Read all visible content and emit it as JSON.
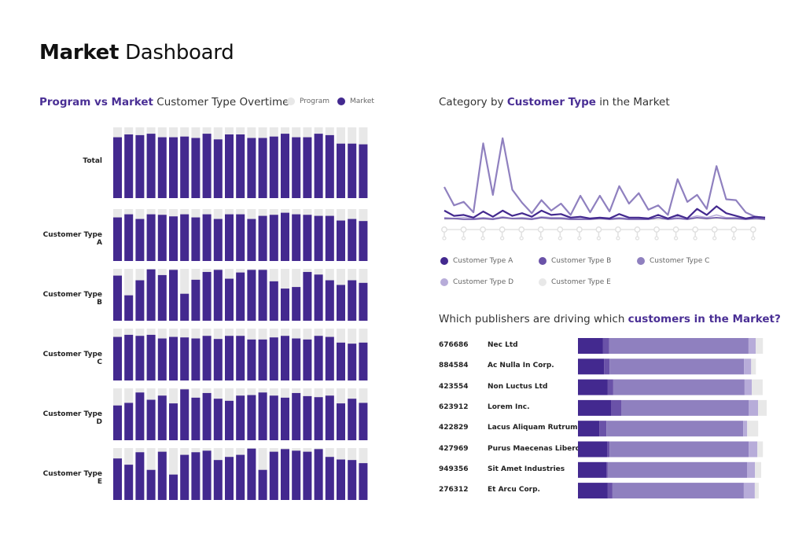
{
  "header": {
    "title_bold": "Market",
    "title_light": "Dashboard"
  },
  "colors": {
    "typeA": "#43298f",
    "typeB": "#6a52a8",
    "typeC": "#8f80bf",
    "typeD": "#b7acd9",
    "typeE": "#e8e8e8",
    "program": "#e8e8e8",
    "market": "#43298f",
    "accent": "#4a2f95"
  },
  "left_panel": {
    "title_highlight": "Program vs Market",
    "title_rest": " Customer Type Overtime",
    "legend": [
      {
        "label": "Program",
        "color": "#e8e8e8"
      },
      {
        "label": "Market",
        "color": "#43298f"
      }
    ]
  },
  "right_panel": {
    "title_pre": "Category by ",
    "title_highlight": "Customer Type",
    "title_post": " in the Market",
    "legend": [
      {
        "label": "Customer Type A",
        "color": "#43298f"
      },
      {
        "label": "Customer Type B",
        "color": "#6a52a8"
      },
      {
        "label": "Customer Type C",
        "color": "#8f80bf"
      },
      {
        "label": "Customer Type D",
        "color": "#b7acd9"
      },
      {
        "label": "Customer Type E",
        "color": "#e8e8e8"
      }
    ]
  },
  "publishers_panel": {
    "title_pre": "Which publishers are driving which ",
    "title_highlight": "customers in the Market?"
  },
  "chart_data": [
    {
      "type": "bar",
      "title": "Program vs Market Customer Type Overtime",
      "description": "Small multiples: Market share (purple) over Program total (grey), 23 periods per row, values as % of Program",
      "ylim": [
        0,
        100
      ],
      "legend": [
        "Program",
        "Market"
      ],
      "rows": [
        {
          "name": "Total",
          "values": [
            86,
            90,
            89,
            91,
            86,
            86,
            87,
            85,
            91,
            83,
            90,
            90,
            85,
            85,
            87,
            91,
            86,
            86,
            91,
            89,
            77,
            77,
            76
          ]
        },
        {
          "name": "Customer Type A",
          "values": [
            84,
            90,
            81,
            90,
            89,
            86,
            90,
            84,
            90,
            81,
            90,
            90,
            81,
            87,
            89,
            93,
            90,
            89,
            87,
            87,
            78,
            81,
            77
          ]
        },
        {
          "name": "Customer Type B",
          "values": [
            87,
            49,
            78,
            99,
            88,
            98,
            52,
            79,
            94,
            98,
            81,
            93,
            98,
            98,
            76,
            62,
            65,
            94,
            89,
            78,
            69,
            78,
            73
          ]
        },
        {
          "name": "Customer Type C",
          "values": [
            84,
            88,
            86,
            88,
            81,
            84,
            83,
            81,
            86,
            80,
            86,
            86,
            79,
            79,
            83,
            86,
            81,
            79,
            86,
            84,
            73,
            71,
            73
          ]
        },
        {
          "name": "Customer Type D",
          "values": [
            67,
            72,
            92,
            78,
            86,
            71,
            98,
            82,
            91,
            80,
            76,
            86,
            87,
            92,
            86,
            82,
            91,
            85,
            83,
            86,
            71,
            80,
            72
          ]
        },
        {
          "name": "Customer Type E",
          "values": [
            80,
            68,
            92,
            58,
            93,
            49,
            87,
            92,
            95,
            77,
            83,
            87,
            99,
            58,
            93,
            98,
            95,
            93,
            98,
            83,
            78,
            77,
            71
          ]
        }
      ]
    },
    {
      "type": "line",
      "title": "Category by Customer Type in the Market",
      "x_ticks": 17,
      "ylim": [
        0,
        100
      ],
      "series": [
        {
          "name": "Customer Type C",
          "values": [
            37,
            16,
            20,
            8,
            87,
            28,
            93,
            34,
            19,
            7,
            22,
            10,
            18,
            5,
            27,
            8,
            27,
            9,
            38,
            18,
            30,
            11,
            16,
            5,
            46,
            20,
            28,
            12,
            61,
            23,
            22,
            8,
            3,
            2
          ]
        },
        {
          "name": "Customer Type A",
          "values": [
            10,
            4,
            5,
            2,
            9,
            3,
            10,
            4,
            7,
            3,
            10,
            5,
            6,
            2,
            3,
            1,
            2,
            1,
            6,
            2,
            2,
            1,
            5,
            1,
            5,
            1,
            12,
            5,
            15,
            7,
            4,
            1,
            3,
            2
          ]
        },
        {
          "name": "Customer Type B",
          "values": [
            1,
            1,
            0,
            0,
            1,
            0,
            2,
            1,
            1,
            0,
            2,
            1,
            1,
            0,
            0,
            0,
            1,
            0,
            1,
            0,
            0,
            0,
            2,
            0,
            1,
            0,
            2,
            1,
            2,
            1,
            1,
            0,
            1,
            0
          ]
        },
        {
          "name": "Customer Type D",
          "values": [
            2,
            1,
            2,
            1,
            2,
            1,
            3,
            1,
            2,
            1,
            3,
            2,
            2,
            1,
            1,
            1,
            1,
            1,
            2,
            1,
            1,
            1,
            2,
            1,
            3,
            1,
            4,
            2,
            5,
            2,
            2,
            1,
            2,
            1
          ]
        },
        {
          "name": "Customer Type E",
          "values": [
            0,
            0,
            0,
            0,
            0,
            0,
            1,
            0,
            0,
            0,
            1,
            0,
            0,
            0,
            0,
            0,
            0,
            0,
            0,
            0,
            0,
            0,
            0,
            0,
            1,
            0,
            1,
            0,
            1,
            0,
            0,
            0,
            0,
            0
          ]
        }
      ]
    },
    {
      "type": "bar",
      "orientation": "horizontal-stacked",
      "title": "Which publishers are driving which customers in the Market?",
      "segments": [
        "Customer Type A",
        "Customer Type B",
        "Customer Type C",
        "Customer Type D",
        "Customer Type E"
      ],
      "rows": [
        {
          "id": "676686",
          "name": "Nec Ltd",
          "values": [
            13.3,
            3.3,
            73.8,
            3.8,
            3.8
          ]
        },
        {
          "id": "884584",
          "name": "Ac Nulla In Corp.",
          "values": [
            13.8,
            2.9,
            71.3,
            3.8,
            2.5
          ]
        },
        {
          "id": "423554",
          "name": "Non Luctus Ltd",
          "values": [
            15.8,
            2.9,
            69.6,
            3.8,
            5.8
          ]
        },
        {
          "id": "623912",
          "name": "Lorem Inc.",
          "values": [
            17.5,
            5.4,
            67.5,
            5.0,
            4.6
          ]
        },
        {
          "id": "422829",
          "name": "Lacus Aliquam Rutrum",
          "values": [
            11.3,
            3.8,
            72.5,
            2.1,
            5.8
          ]
        },
        {
          "id": "427969",
          "name": "Purus Maecenas Libero",
          "values": [
            15.4,
            1.3,
            73.8,
            4.6,
            2.9
          ]
        },
        {
          "id": "949356",
          "name": "Sit Amet Industries",
          "values": [
            15.0,
            0.8,
            73.8,
            4.2,
            3.3
          ]
        },
        {
          "id": "276312",
          "name": "Et Arcu Corp.",
          "values": [
            15.8,
            2.5,
            69.6,
            5.8,
            2.1
          ]
        }
      ]
    }
  ]
}
